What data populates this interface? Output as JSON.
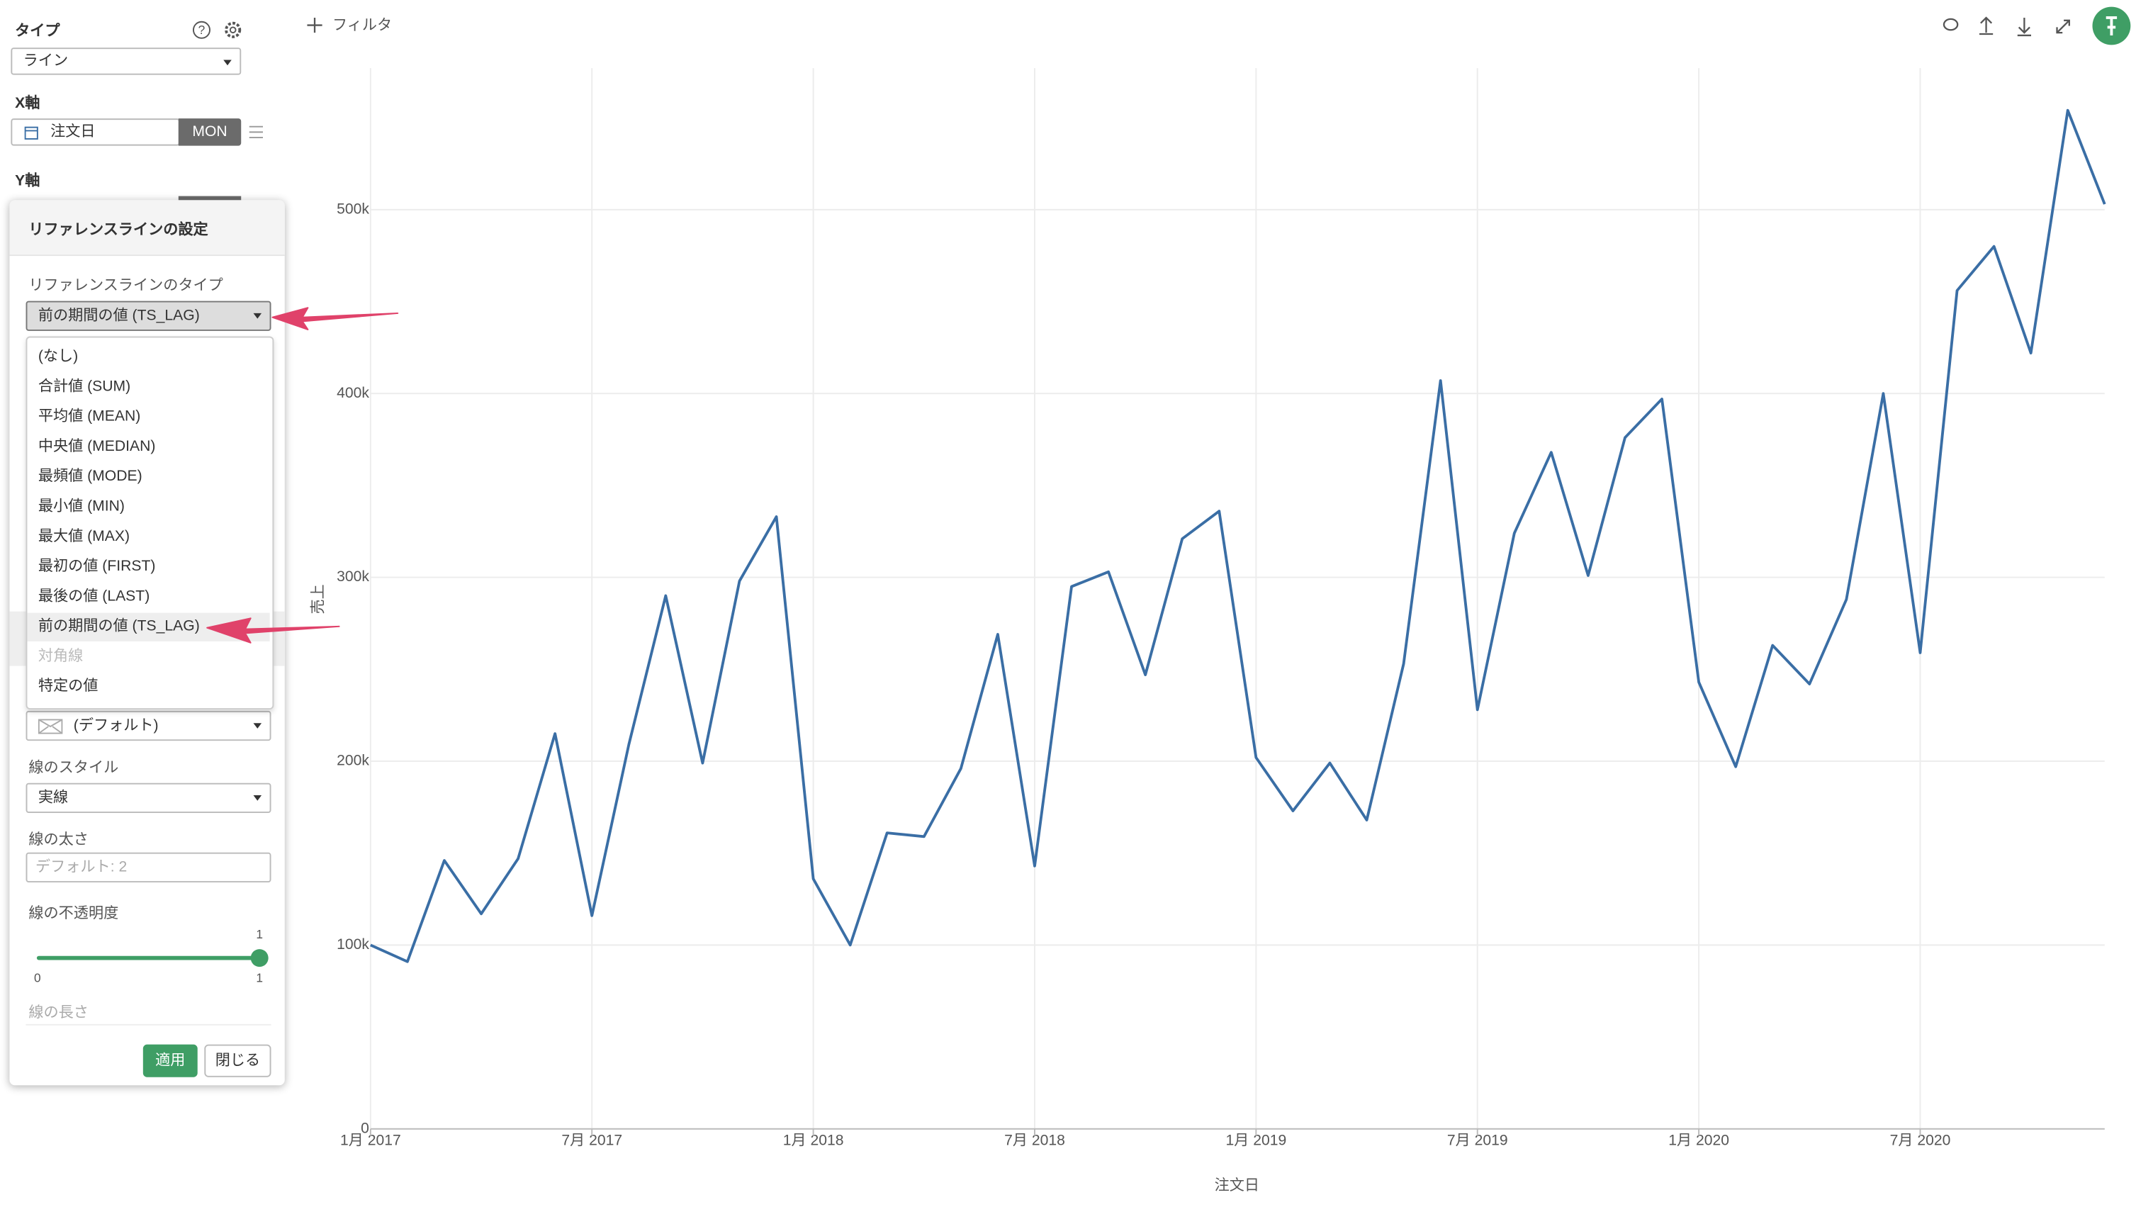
{
  "toolbar": {
    "filter": "フィルタ"
  },
  "sidebar": {
    "type_label": "タイプ",
    "type_value": "ライン",
    "x_axis_label": "X軸",
    "x_field": "注文日",
    "x_unit": "MON",
    "y_axis_label": "Y軸"
  },
  "reference_panel": {
    "title": "リファレンスラインの設定",
    "type_label": "リファレンスラインのタイプ",
    "type_value": "前の期間の値 (TS_LAG)",
    "options": [
      "(なし)",
      "合計値 (SUM)",
      "平均値 (MEAN)",
      "中央値 (MEDIAN)",
      "最頻値 (MODE)",
      "最小値 (MIN)",
      "最大値 (MAX)",
      "最初の値 (FIRST)",
      "最後の値 (LAST)",
      "前の期間の値 (TS_LAG)",
      "対角線",
      "特定の値"
    ],
    "color_value": "(デフォルト)",
    "style_label": "線のスタイル",
    "style_value": "実線",
    "width_label": "線の太さ",
    "width_placeholder": "デフォルト: 2",
    "opacity_label": "線の不透明度",
    "opacity_value": "1",
    "opacity_min": "0",
    "opacity_max": "1",
    "length_label": "線の長さ",
    "apply": "適用",
    "close": "閉じる"
  },
  "chart_data": {
    "type": "line",
    "x_label": "注文日",
    "y_label": "売上",
    "x": [
      "2017-01",
      "2017-02",
      "2017-03",
      "2017-04",
      "2017-05",
      "2017-06",
      "2017-07",
      "2017-08",
      "2017-09",
      "2017-10",
      "2017-11",
      "2017-12",
      "2018-01",
      "2018-02",
      "2018-03",
      "2018-04",
      "2018-05",
      "2018-06",
      "2018-07",
      "2018-08",
      "2018-09",
      "2018-10",
      "2018-11",
      "2018-12",
      "2019-01",
      "2019-02",
      "2019-03",
      "2019-04",
      "2019-05",
      "2019-06",
      "2019-07",
      "2019-08",
      "2019-09",
      "2019-10",
      "2019-11",
      "2019-12",
      "2020-01",
      "2020-02",
      "2020-03",
      "2020-04",
      "2020-05",
      "2020-06",
      "2020-07",
      "2020-08",
      "2020-09",
      "2020-10",
      "2020-11",
      "2020-12"
    ],
    "series": [
      {
        "name": "売上",
        "color": "#3a6ea5",
        "values": [
          100000,
          91000,
          146000,
          117000,
          147000,
          215000,
          116000,
          209000,
          290000,
          199000,
          298000,
          333000,
          136000,
          100000,
          161000,
          159000,
          196000,
          269000,
          143000,
          295000,
          303000,
          247000,
          321000,
          336000,
          202000,
          173000,
          199000,
          168000,
          253000,
          407000,
          228000,
          324000,
          368000,
          301000,
          376000,
          397000,
          243000,
          197000,
          263000,
          242000,
          288000,
          400000,
          259000,
          456000,
          480000,
          422000,
          554000,
          503000
        ]
      }
    ],
    "xlim": [
      "2017-01",
      "2020-12"
    ],
    "xticks": [
      {
        "value": "2017-01",
        "label": "1月 2017"
      },
      {
        "value": "2017-07",
        "label": "7月 2017"
      },
      {
        "value": "2018-01",
        "label": "1月 2018"
      },
      {
        "value": "2018-07",
        "label": "7月 2018"
      },
      {
        "value": "2019-01",
        "label": "1月 2019"
      },
      {
        "value": "2019-07",
        "label": "7月 2019"
      },
      {
        "value": "2020-01",
        "label": "1月 2020"
      },
      {
        "value": "2020-07",
        "label": "7月 2020"
      }
    ],
    "ylim": [
      0,
      577000
    ],
    "yticks": [
      0,
      {
        "value": 100000,
        "label": "100k"
      },
      {
        "value": 200000,
        "label": "200k"
      },
      {
        "value": 300000,
        "label": "300k"
      },
      {
        "value": 400000,
        "label": "400k"
      },
      {
        "value": 500000,
        "label": "500k"
      }
    ],
    "grid": true
  }
}
